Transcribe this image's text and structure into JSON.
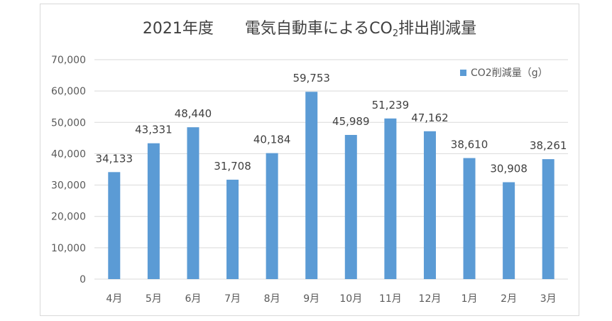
{
  "chart_data": {
    "type": "bar",
    "title_main": "2021年度　　電気自動車によるCO",
    "title_sub": "2",
    "title_end": "排出削減量",
    "categories": [
      "4月",
      "5月",
      "6月",
      "7月",
      "8月",
      "9月",
      "10月",
      "11月",
      "12月",
      "1月",
      "2月",
      "3月"
    ],
    "series": [
      {
        "name": "CO2削減量（g）",
        "values": [
          34133,
          43331,
          48440,
          31708,
          40184,
          59753,
          45989,
          51239,
          47162,
          38610,
          30908,
          38261
        ],
        "labels": [
          "34,133",
          "43,331",
          "48,440",
          "31,708",
          "40,184",
          "59,753",
          "45,989",
          "51,239",
          "47,162",
          "38,610",
          "30,908",
          "38,261"
        ]
      }
    ],
    "ylim": [
      0,
      70000
    ],
    "yticks": [
      0,
      10000,
      20000,
      30000,
      40000,
      50000,
      60000,
      70000
    ],
    "ytick_labels": [
      "0",
      "10,000",
      "20,000",
      "30,000",
      "40,000",
      "50,000",
      "60,000",
      "70,000"
    ],
    "grid": true,
    "legend_position": "top-right",
    "colors": {
      "bar": "#5b9bd5",
      "grid": "#d9d9d9",
      "text": "#595959"
    }
  }
}
